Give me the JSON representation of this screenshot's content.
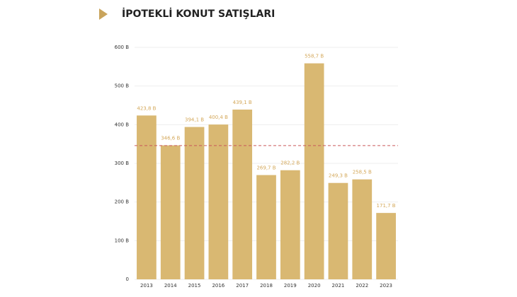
{
  "chart_data": {
    "type": "bar",
    "title": "İPOTEKLİ KONUT SATIŞLARI",
    "categories": [
      "2013",
      "2014",
      "2015",
      "2016",
      "2017",
      "2018",
      "2019",
      "2020",
      "2021",
      "2022",
      "2023"
    ],
    "values": [
      423.8,
      346.6,
      394.1,
      400.4,
      439.1,
      269.7,
      282.2,
      558.7,
      249.3,
      258.5,
      171.7
    ],
    "value_labels": [
      "423,8 B",
      "346,6 B",
      "394,1 B",
      "400,4 B",
      "439,1 B",
      "269,7 B",
      "282,2 B",
      "558,7 B",
      "249,3 B",
      "258,5 B",
      "171,7 B"
    ],
    "color": "#d9b872",
    "ylim": [
      0,
      600
    ],
    "yticks": [
      0,
      {
        "value": 100,
        "label": "100 B"
      },
      {
        "value": 200,
        "label": "200 B"
      },
      {
        "value": 300,
        "label": "300 B"
      },
      {
        "value": 400,
        "label": "400 B"
      },
      {
        "value": 500,
        "label": "500 B"
      },
      {
        "value": 600,
        "label": "600 B"
      }
    ],
    "grid": true,
    "reference_line": {
      "value": 346,
      "color": "#c9575a"
    }
  }
}
